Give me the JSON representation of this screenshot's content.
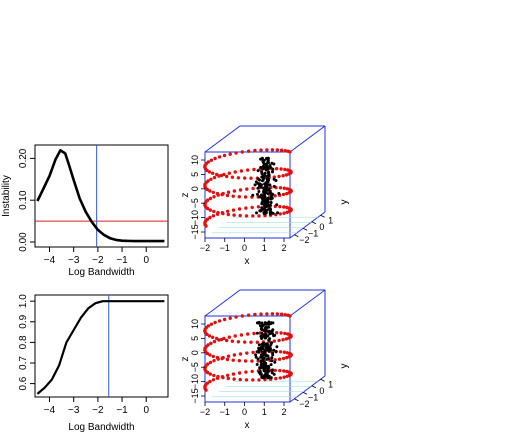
{
  "chart_data": [
    {
      "type": "line",
      "xlabel": "Log Bandwidth",
      "ylabel": "Instability",
      "xlim": [
        -4.6,
        0.9
      ],
      "ylim": [
        -0.012,
        0.232
      ],
      "xticks": [
        -4,
        -3,
        -2,
        -1,
        0
      ],
      "xtick_labels": [
        "−4",
        "−3",
        "−2",
        "−1",
        "0"
      ],
      "yticks": [
        0.0,
        0.1,
        0.2
      ],
      "ytick_labels": [
        "0.00",
        "0.10",
        "0.20"
      ],
      "series": [
        {
          "x": [
            -4.5,
            -4.3,
            -4.0,
            -3.75,
            -3.55,
            -3.35,
            -3.2,
            -3.0,
            -2.75,
            -2.5,
            -2.25,
            -2.0,
            -1.75,
            -1.5,
            -1.25,
            -1.0,
            -0.5,
            0.0,
            0.5,
            0.75
          ],
          "y": [
            0.098,
            0.122,
            0.158,
            0.198,
            0.219,
            0.212,
            0.185,
            0.148,
            0.104,
            0.072,
            0.048,
            0.029,
            0.017,
            0.009,
            0.005,
            0.003,
            0.002,
            0.002,
            0.002,
            0.002
          ]
        }
      ],
      "hline": 0.05,
      "vline": -2.05,
      "hline_color": "#dd2222",
      "vline_color": "#3355cc"
    },
    {
      "type": "scatter3d",
      "xlabel": "x",
      "ylabel": "y",
      "zlabel": "z",
      "xticks": [
        "−2",
        "−1",
        "0",
        "1",
        "2"
      ],
      "yticks": [
        "−2",
        "−1",
        "0",
        "1"
      ],
      "zticks": [
        "−15",
        "−10",
        "−5",
        "0",
        "5",
        "10"
      ],
      "series": [
        {
          "name": "helix",
          "color": "#e01010"
        },
        {
          "name": "cluster",
          "color": "#000000"
        }
      ],
      "box_color": "#2233dd"
    },
    {
      "type": "line",
      "xlabel": "Log Bandwidth",
      "ylabel": "",
      "xlim": [
        -4.6,
        0.9
      ],
      "ylim": [
        0.535,
        1.03
      ],
      "xticks": [
        -4,
        -3,
        -2,
        -1,
        0
      ],
      "xtick_labels": [
        "−4",
        "−3",
        "−2",
        "−1",
        "0"
      ],
      "yticks": [
        0.6,
        0.7,
        0.8,
        0.9,
        1.0
      ],
      "ytick_labels": [
        "0.6",
        "0.7",
        "0.8",
        "0.9",
        "1.0"
      ],
      "series": [
        {
          "x": [
            -4.5,
            -4.2,
            -3.9,
            -3.6,
            -3.3,
            -3.0,
            -2.7,
            -2.4,
            -2.1,
            -1.8,
            -1.5,
            -1.2,
            -0.9,
            -0.5,
            0.0,
            0.5,
            0.75
          ],
          "y": [
            0.55,
            0.58,
            0.62,
            0.69,
            0.8,
            0.86,
            0.92,
            0.965,
            0.99,
            1.0,
            1.0,
            1.0,
            1.0,
            1.0,
            1.0,
            1.0,
            1.0
          ]
        }
      ],
      "vline": -1.55,
      "vline_color": "#3355cc"
    },
    {
      "type": "scatter3d",
      "xlabel": "x",
      "ylabel": "y",
      "zlabel": "z",
      "xticks": [
        "−2",
        "−1",
        "0",
        "1",
        "2"
      ],
      "yticks": [
        "−2",
        "−1",
        "0",
        "1"
      ],
      "zticks": [
        "−15",
        "−10",
        "−5",
        "0",
        "5",
        "10"
      ],
      "series": [
        {
          "name": "helix",
          "color": "#e01010"
        },
        {
          "name": "cluster",
          "color": "#000000"
        }
      ],
      "box_color": "#2233dd"
    }
  ]
}
